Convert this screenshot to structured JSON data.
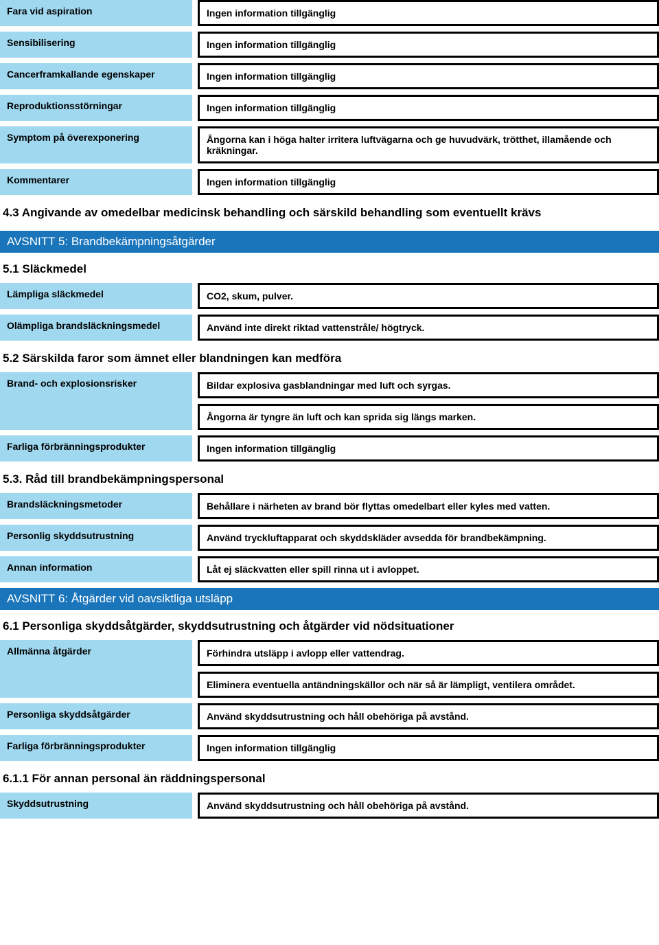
{
  "colors": {
    "label_bg": "#a0d8ef",
    "section_bg": "#1a75bb",
    "section_text": "#ffffff",
    "border": "#000000",
    "text": "#000000",
    "page_bg": "#ffffff"
  },
  "section4": {
    "rows": [
      {
        "label": "Fara vid aspiration",
        "value": "Ingen information tillgänglig"
      },
      {
        "label": "Sensibilisering",
        "value": "Ingen information tillgänglig"
      },
      {
        "label": "Cancerframkallande egenskaper",
        "value": "Ingen information tillgänglig"
      },
      {
        "label": "Reproduktionsstörningar",
        "value": "Ingen information tillgänglig"
      },
      {
        "label": "Symptom på överexponering",
        "value": "Ångorna kan i höga halter irritera luftvägarna och ge huvudvärk, trötthet, illamående och kräkningar."
      },
      {
        "label": "Kommentarer",
        "value": "Ingen information tillgänglig"
      }
    ],
    "sub43": "4.3 Angivande av omedelbar medicinsk behandling och särskild behandling som eventuellt krävs"
  },
  "section5": {
    "header": "AVSNITT 5: Brandbekämpningsåtgärder",
    "sub51": "5.1 Släckmedel",
    "rows51": [
      {
        "label": "Lämpliga släckmedel",
        "value": "CO2, skum, pulver."
      },
      {
        "label": "Olämpliga brandsläckningsmedel",
        "value": "Använd inte direkt riktad vattenstråle/ högtryck."
      }
    ],
    "sub52": "5.2 Särskilda faror som ämnet eller blandningen kan medföra",
    "row52a_label": "Brand- och explosionsrisker",
    "row52a_values": [
      "Bildar explosiva gasblandningar med luft och syrgas.",
      "Ångorna är tyngre än luft och kan sprida sig längs marken."
    ],
    "row52b": {
      "label": "Farliga förbränningsprodukter",
      "value": "Ingen information tillgänglig"
    },
    "sub53": "5.3. Råd till brandbekämpningspersonal",
    "rows53": [
      {
        "label": "Brandsläckningsmetoder",
        "value": "Behållare i närheten av brand bör flyttas omedelbart eller kyles med vatten."
      },
      {
        "label": "Personlig skyddsutrustning",
        "value": "Använd tryckluftapparat och skyddskläder avsedda för brandbekämpning."
      },
      {
        "label": "Annan information",
        "value": "Låt ej släckvatten eller spill rinna ut i avloppet."
      }
    ]
  },
  "section6": {
    "header": "AVSNITT 6: Åtgärder vid oavsiktliga utsläpp",
    "sub61": "6.1 Personliga skyddsåtgärder, skyddsutrustning och åtgärder vid nödsituationer",
    "row61a_label": "Allmänna åtgärder",
    "row61a_values": [
      "Förhindra utsläpp i avlopp eller vattendrag.",
      "Eliminera eventuella antändningskällor och när så är lämpligt, ventilera området."
    ],
    "rows61b": [
      {
        "label": "Personliga skyddsåtgärder",
        "value": "Använd skyddsutrustning och håll obehöriga på avstånd."
      },
      {
        "label": "Farliga förbränningsprodukter",
        "value": "Ingen information tillgänglig"
      }
    ],
    "sub611": "6.1.1 För annan personal än räddningspersonal",
    "row611": {
      "label": "Skyddsutrustning",
      "value": "Använd skyddsutrustning och håll obehöriga på avstånd."
    }
  }
}
